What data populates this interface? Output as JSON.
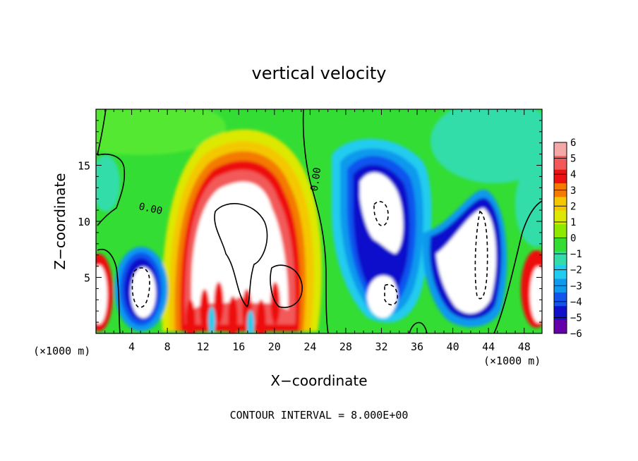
{
  "chart_data": {
    "type": "heatmap",
    "title": "vertical velocity",
    "xlabel": "X−coordinate",
    "ylabel": "Z−coordinate",
    "x_unit_left": "(×1000 m)",
    "x_unit_right": "(×1000 m)",
    "footer": "CONTOUR INTERVAL = 8.000E+00",
    "xlim": [
      0,
      50
    ],
    "ylim": [
      0,
      20
    ],
    "x_ticks": [
      4,
      8,
      12,
      16,
      20,
      24,
      28,
      32,
      36,
      40,
      44,
      48
    ],
    "y_ticks": [
      5,
      10,
      15
    ],
    "colorbar": {
      "min": -6,
      "max": 6,
      "ticks": [
        6,
        5,
        4,
        3,
        2,
        1,
        0,
        -1,
        -2,
        -3,
        -4,
        -5,
        -6
      ],
      "tick_labels": [
        "6",
        "5",
        "4",
        "3",
        "2",
        "1",
        "0",
        "−1",
        "−2",
        "−3",
        "−4",
        "−5",
        "−6"
      ],
      "colors": [
        "#f4a8a8",
        "#f25a5a",
        "#ee1111",
        "#f47a00",
        "#f4c800",
        "#dde800",
        "#8ee800",
        "#33dd33",
        "#33ddaa",
        "#22ccee",
        "#1199ee",
        "#1155ee",
        "#1111cc",
        "#6600aa"
      ]
    },
    "contour_labels": [
      "0.00",
      "0.00"
    ]
  }
}
